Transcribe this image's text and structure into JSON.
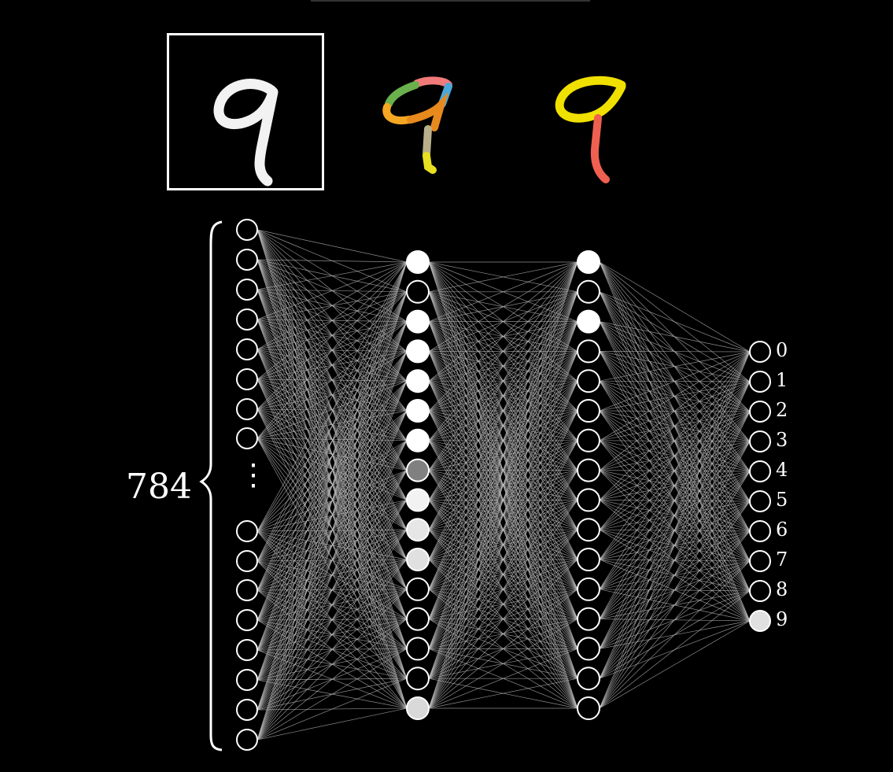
{
  "input_layer": {
    "count_label": "784",
    "dots": "⋮"
  },
  "output_layer": {
    "labels": [
      "0",
      "1",
      "2",
      "3",
      "4",
      "5",
      "6",
      "7",
      "8",
      "9"
    ]
  },
  "hidden_layer_1": {
    "activations": [
      1.0,
      0.0,
      1.0,
      1.0,
      1.0,
      1.0,
      1.0,
      0.5,
      0.95,
      0.9,
      0.88,
      0.0,
      0.0,
      0.0,
      0.0,
      0.85
    ]
  },
  "hidden_layer_2": {
    "activations": [
      1.0,
      0.0,
      1.0,
      0.0,
      0.0,
      0.0,
      0.0,
      0.0,
      0.0,
      0.0,
      0.0,
      0.0,
      0.0,
      0.0,
      0.0,
      0.0
    ]
  },
  "output_activations": [
    0,
    0,
    0,
    0,
    0,
    0,
    0,
    0,
    0,
    0.88
  ],
  "colors": {
    "background": "#000000",
    "edge": "#bdbdbd",
    "node_stroke": "#ffffff",
    "digit_part_colors": [
      "#f07a7a",
      "#4aa8d8",
      "#6ab04c",
      "#f5a623",
      "#e8891e",
      "#b8b08a",
      "#e8e020"
    ],
    "loop_color": "#f0e000",
    "stroke_color": "#f06050"
  }
}
